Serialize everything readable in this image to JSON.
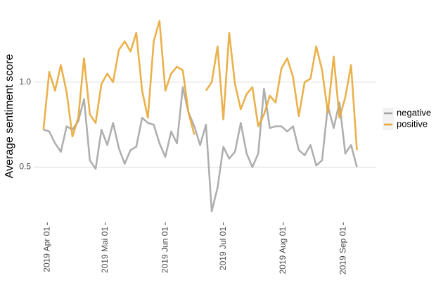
{
  "chart_data": {
    "type": "line",
    "y_label": "Average sentiment score",
    "x": [
      "2019-03-30",
      "2019-04-02",
      "2019-04-05",
      "2019-04-08",
      "2019-04-11",
      "2019-04-14",
      "2019-04-17",
      "2019-04-20",
      "2019-04-23",
      "2019-04-26",
      "2019-04-29",
      "2019-05-02",
      "2019-05-05",
      "2019-05-08",
      "2019-05-11",
      "2019-05-14",
      "2019-05-17",
      "2019-05-20",
      "2019-05-23",
      "2019-05-26",
      "2019-05-29",
      "2019-06-01",
      "2019-06-04",
      "2019-06-07",
      "2019-06-10",
      "2019-06-13",
      "2019-06-16",
      "2019-06-19",
      "2019-06-22",
      "2019-06-25",
      "2019-06-28",
      "2019-07-01",
      "2019-07-04",
      "2019-07-07",
      "2019-07-10",
      "2019-07-13",
      "2019-07-16",
      "2019-07-19",
      "2019-07-22",
      "2019-07-25",
      "2019-07-28",
      "2019-07-31",
      "2019-08-03",
      "2019-08-06",
      "2019-08-09",
      "2019-08-12",
      "2019-08-15",
      "2019-08-18",
      "2019-08-21",
      "2019-08-24",
      "2019-08-27",
      "2019-08-30",
      "2019-09-02",
      "2019-09-05",
      "2019-09-08"
    ],
    "series": [
      {
        "name": "negative",
        "color": "#a6a6a6",
        "values": [
          0.72,
          0.71,
          0.64,
          0.59,
          0.74,
          0.72,
          0.77,
          0.9,
          0.54,
          0.49,
          0.72,
          0.63,
          0.76,
          0.61,
          0.52,
          0.6,
          0.62,
          0.79,
          0.76,
          0.75,
          0.64,
          0.56,
          0.71,
          0.64,
          0.97,
          0.82,
          0.74,
          0.63,
          0.75,
          0.24,
          0.38,
          0.62,
          0.55,
          0.59,
          0.76,
          0.58,
          0.5,
          0.58,
          0.96,
          0.73,
          0.74,
          0.74,
          0.71,
          0.74,
          0.6,
          0.57,
          0.63,
          0.51,
          0.54,
          0.86,
          0.73,
          0.88,
          0.58,
          0.63,
          0.5
        ]
      },
      {
        "name": "positive",
        "color": "#e8a838",
        "values": [
          0.72,
          1.06,
          0.95,
          1.1,
          0.94,
          0.68,
          0.79,
          1.14,
          0.81,
          0.76,
          0.99,
          1.05,
          1.0,
          1.19,
          1.24,
          1.18,
          1.29,
          0.95,
          0.79,
          1.24,
          1.36,
          0.95,
          1.05,
          1.09,
          1.07,
          0.82,
          0.69,
          null,
          0.95,
          1.0,
          1.21,
          0.78,
          1.29,
          0.99,
          0.84,
          0.93,
          0.97,
          0.74,
          0.81,
          0.92,
          0.88,
          1.08,
          1.14,
          1.03,
          0.8,
          1.0,
          1.02,
          1.21,
          1.07,
          0.82,
          1.15,
          0.79,
          0.91,
          1.1,
          0.6
        ]
      }
    ],
    "xlim": [
      "2019-03-25",
      "2019-09-18"
    ],
    "xticks": [
      {
        "value": "2019-04-01",
        "label": "2019 Apr 01"
      },
      {
        "value": "2019-05-01",
        "label": "2019 Mai 01"
      },
      {
        "value": "2019-06-01",
        "label": "2019 Jun 01"
      },
      {
        "value": "2019-07-01",
        "label": "2019 Jul 01"
      },
      {
        "value": "2019-08-01",
        "label": "2019 Aug 01"
      },
      {
        "value": "2019-09-01",
        "label": "2019 Sep 01"
      }
    ],
    "ylim": [
      0.2,
      1.4
    ],
    "yticks": [
      0.5,
      {
        "value": 1.0,
        "label": "1.0"
      }
    ],
    "grid": true,
    "legend_position": "right"
  }
}
